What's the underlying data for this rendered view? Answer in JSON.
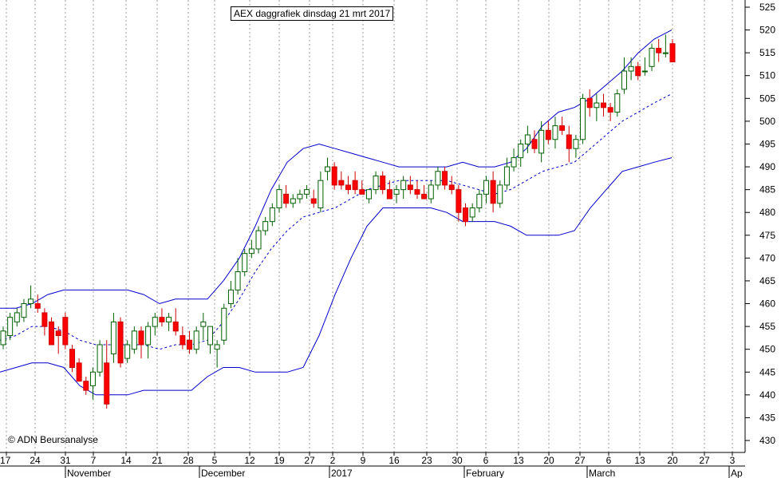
{
  "chart_data": {
    "type": "candlestick",
    "title": "AEX daggrafiek dinsdag 21 mrt 2017",
    "watermark": "© ADN Beursanalyse",
    "ylim": [
      427,
      528
    ],
    "y_ticks": [
      430,
      435,
      440,
      445,
      450,
      455,
      460,
      465,
      470,
      475,
      480,
      485,
      490,
      495,
      500,
      505,
      510,
      515,
      520,
      525
    ],
    "x_tick_labels": [
      "17",
      "24",
      "31",
      "7",
      "14",
      "21",
      "28",
      "5",
      "12",
      "19",
      "27",
      "2",
      "9",
      "16",
      "23",
      "30",
      "6",
      "13",
      "20",
      "27",
      "6",
      "13",
      "20",
      "27",
      "3"
    ],
    "month_labels": [
      "November",
      "December",
      "2017",
      "February",
      "March",
      "Ap"
    ],
    "grid": "vertical dotted",
    "colors": {
      "up_fill": "#00a000",
      "down_fill": "#ff0000",
      "band": "#0000cc",
      "background": "#ffffff"
    },
    "candles": [
      [
        451,
        455,
        450,
        454
      ],
      [
        453,
        458,
        452,
        457
      ],
      [
        456,
        459,
        455,
        458
      ],
      [
        457,
        461,
        456,
        460
      ],
      [
        460,
        464,
        459,
        461
      ],
      [
        460,
        462,
        458,
        459
      ],
      [
        458,
        459,
        453,
        455
      ],
      [
        456,
        457,
        452,
        451
      ],
      [
        454,
        455,
        449,
        453
      ],
      [
        457,
        458,
        450,
        451
      ],
      [
        450,
        451,
        445,
        446
      ],
      [
        447,
        448,
        443,
        443
      ],
      [
        443,
        444,
        440,
        441
      ],
      [
        442,
        446,
        439,
        445
      ],
      [
        445,
        452,
        444,
        451
      ],
      [
        447,
        452,
        437,
        438
      ],
      [
        449,
        458,
        447,
        456
      ],
      [
        456,
        457,
        446,
        447
      ],
      [
        448,
        452,
        447,
        451
      ],
      [
        450,
        455,
        449,
        454
      ],
      [
        454,
        455,
        448,
        451
      ],
      [
        451,
        456,
        448,
        455
      ],
      [
        455,
        458,
        453,
        457
      ],
      [
        457,
        459,
        455,
        456
      ],
      [
        456,
        458,
        454,
        457
      ],
      [
        456,
        459,
        453,
        454
      ],
      [
        453,
        455,
        450,
        451
      ],
      [
        452,
        454,
        449,
        450
      ],
      [
        450,
        455,
        449,
        454
      ],
      [
        455,
        458,
        452,
        456
      ],
      [
        451,
        455,
        449,
        455
      ],
      [
        450,
        452,
        446,
        451
      ],
      [
        452,
        460,
        451,
        459
      ],
      [
        460,
        465,
        459,
        463
      ],
      [
        463,
        470,
        462,
        467
      ],
      [
        467,
        472,
        466,
        471
      ],
      [
        471,
        474,
        470,
        472
      ],
      [
        472,
        477,
        471,
        476
      ],
      [
        476,
        479,
        475,
        478
      ],
      [
        478,
        482,
        477,
        481
      ],
      [
        481,
        486,
        480,
        485
      ],
      [
        484,
        486,
        481,
        482
      ],
      [
        482,
        484,
        481,
        483
      ],
      [
        483,
        485,
        482,
        484
      ],
      [
        484,
        486,
        483,
        485
      ],
      [
        483,
        485,
        481,
        482
      ],
      [
        481,
        489,
        480,
        487
      ],
      [
        489,
        492,
        487,
        490
      ],
      [
        490,
        491,
        485,
        486
      ],
      [
        487,
        489,
        485,
        486
      ],
      [
        486,
        488,
        484,
        485
      ],
      [
        487,
        489,
        484,
        485
      ],
      [
        485,
        487,
        484,
        484
      ],
      [
        483,
        485,
        482,
        485
      ],
      [
        485,
        489,
        484,
        488
      ],
      [
        488,
        489,
        484,
        485
      ],
      [
        485,
        487,
        483,
        483
      ],
      [
        484,
        486,
        482,
        485
      ],
      [
        485,
        488,
        483,
        487
      ],
      [
        486,
        488,
        484,
        485
      ],
      [
        485,
        487,
        483,
        484
      ],
      [
        484,
        486,
        483,
        483
      ],
      [
        483,
        487,
        482,
        486
      ],
      [
        486,
        490,
        485,
        489
      ],
      [
        489,
        490,
        485,
        486
      ],
      [
        486,
        488,
        484,
        485
      ],
      [
        485,
        486,
        478,
        480
      ],
      [
        481,
        482,
        477,
        478
      ],
      [
        479,
        482,
        478,
        481
      ],
      [
        481,
        485,
        480,
        484
      ],
      [
        484,
        488,
        482,
        487
      ],
      [
        487,
        489,
        480,
        482
      ],
      [
        482,
        487,
        481,
        486
      ],
      [
        486,
        492,
        485,
        490
      ],
      [
        490,
        494,
        489,
        492
      ],
      [
        492,
        496,
        490,
        495
      ],
      [
        495,
        499,
        493,
        497
      ],
      [
        496,
        498,
        493,
        494
      ],
      [
        493,
        500,
        491,
        498
      ],
      [
        498,
        500,
        495,
        496
      ],
      [
        496,
        501,
        494,
        499
      ],
      [
        499,
        501,
        497,
        498
      ],
      [
        497,
        499,
        491,
        494
      ],
      [
        494,
        497,
        492,
        496
      ],
      [
        496,
        506,
        495,
        505
      ],
      [
        505,
        507,
        501,
        503
      ],
      [
        503,
        506,
        500,
        504
      ],
      [
        504,
        506,
        501,
        503
      ],
      [
        503,
        504,
        500,
        502
      ],
      [
        502,
        507,
        501,
        506
      ],
      [
        507,
        514,
        506,
        511
      ],
      [
        511,
        514,
        509,
        512
      ],
      [
        512,
        513,
        509,
        510
      ],
      [
        511,
        514,
        510,
        511
      ],
      [
        512,
        517,
        511,
        516
      ],
      [
        516,
        518,
        513,
        515
      ],
      [
        515,
        519,
        514,
        515
      ],
      [
        517,
        518,
        513,
        513
      ]
    ],
    "sma_middle": [
      [
        0,
        452
      ],
      [
        20,
        453
      ],
      [
        40,
        455
      ],
      [
        60,
        455
      ],
      [
        80,
        454
      ],
      [
        100,
        452
      ],
      [
        120,
        451
      ],
      [
        140,
        451
      ],
      [
        160,
        451
      ],
      [
        180,
        451
      ],
      [
        200,
        450
      ],
      [
        220,
        451
      ],
      [
        240,
        451
      ],
      [
        260,
        452
      ],
      [
        280,
        456
      ],
      [
        300,
        461
      ],
      [
        320,
        467
      ],
      [
        340,
        472
      ],
      [
        360,
        476
      ],
      [
        380,
        479
      ],
      [
        400,
        480
      ],
      [
        420,
        481
      ],
      [
        440,
        483
      ],
      [
        460,
        485
      ],
      [
        480,
        486
      ],
      [
        500,
        487
      ],
      [
        520,
        487
      ],
      [
        540,
        487
      ],
      [
        560,
        487
      ],
      [
        580,
        486
      ],
      [
        600,
        485
      ],
      [
        620,
        484
      ],
      [
        640,
        485
      ],
      [
        660,
        487
      ],
      [
        680,
        489
      ],
      [
        700,
        490
      ],
      [
        720,
        491
      ],
      [
        740,
        494
      ],
      [
        760,
        497
      ],
      [
        780,
        500
      ],
      [
        800,
        502
      ],
      [
        820,
        504
      ],
      [
        842,
        506
      ]
    ],
    "band_upper": [
      [
        0,
        459
      ],
      [
        20,
        459
      ],
      [
        40,
        460
      ],
      [
        60,
        462
      ],
      [
        80,
        463
      ],
      [
        100,
        463
      ],
      [
        120,
        463
      ],
      [
        140,
        463
      ],
      [
        160,
        463
      ],
      [
        180,
        462
      ],
      [
        200,
        460
      ],
      [
        220,
        461
      ],
      [
        240,
        461
      ],
      [
        260,
        461
      ],
      [
        280,
        465
      ],
      [
        300,
        470
      ],
      [
        320,
        477
      ],
      [
        340,
        485
      ],
      [
        360,
        491
      ],
      [
        380,
        494
      ],
      [
        400,
        495
      ],
      [
        420,
        494
      ],
      [
        440,
        493
      ],
      [
        460,
        492
      ],
      [
        480,
        491
      ],
      [
        500,
        490
      ],
      [
        520,
        490
      ],
      [
        540,
        490
      ],
      [
        560,
        490
      ],
      [
        580,
        491
      ],
      [
        600,
        490
      ],
      [
        620,
        490
      ],
      [
        640,
        491
      ],
      [
        660,
        494
      ],
      [
        680,
        499
      ],
      [
        700,
        502
      ],
      [
        720,
        503
      ],
      [
        740,
        505
      ],
      [
        760,
        508
      ],
      [
        780,
        511
      ],
      [
        800,
        515
      ],
      [
        820,
        518
      ],
      [
        842,
        520
      ]
    ],
    "band_lower": [
      [
        0,
        445
      ],
      [
        20,
        446
      ],
      [
        40,
        447
      ],
      [
        60,
        447
      ],
      [
        80,
        446
      ],
      [
        100,
        442
      ],
      [
        120,
        440
      ],
      [
        140,
        440
      ],
      [
        160,
        440
      ],
      [
        180,
        441
      ],
      [
        200,
        441
      ],
      [
        220,
        441
      ],
      [
        240,
        441
      ],
      [
        260,
        444
      ],
      [
        280,
        446
      ],
      [
        300,
        446
      ],
      [
        320,
        445
      ],
      [
        340,
        445
      ],
      [
        360,
        445
      ],
      [
        380,
        446
      ],
      [
        400,
        453
      ],
      [
        420,
        462
      ],
      [
        440,
        470
      ],
      [
        460,
        477
      ],
      [
        480,
        481
      ],
      [
        500,
        481
      ],
      [
        520,
        481
      ],
      [
        540,
        481
      ],
      [
        560,
        480
      ],
      [
        580,
        478
      ],
      [
        600,
        478
      ],
      [
        620,
        478
      ],
      [
        640,
        477
      ],
      [
        660,
        475
      ],
      [
        680,
        475
      ],
      [
        700,
        475
      ],
      [
        720,
        476
      ],
      [
        740,
        481
      ],
      [
        760,
        485
      ],
      [
        780,
        489
      ],
      [
        800,
        490
      ],
      [
        820,
        491
      ],
      [
        842,
        492
      ]
    ]
  }
}
